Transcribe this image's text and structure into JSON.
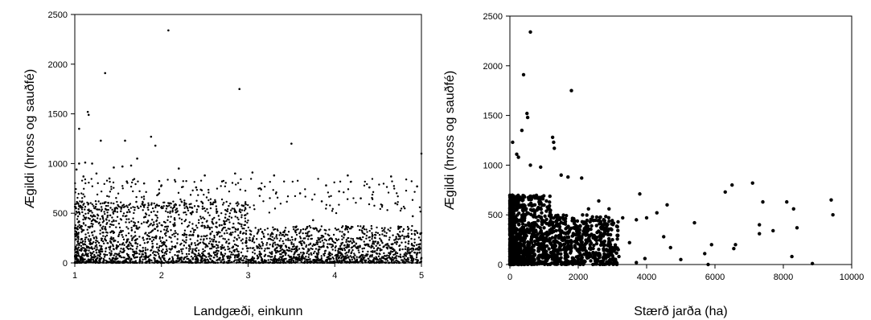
{
  "chart_data": [
    {
      "type": "scatter",
      "title": "",
      "xlabel": "Landgæði, einkunn",
      "ylabel": "Ægildi (hross og sauðfé)",
      "xlim": [
        1,
        5
      ],
      "ylim": [
        0,
        2500
      ],
      "xticks": [
        1,
        2,
        3,
        4,
        5
      ],
      "yticks": [
        0,
        500,
        1000,
        1500,
        2000,
        2500
      ],
      "grid": false,
      "marker": "small-dot",
      "color": "#000000",
      "points": [
        [
          2.08,
          2340
        ],
        [
          1.35,
          1910
        ],
        [
          2.9,
          1750
        ],
        [
          1.15,
          1520
        ],
        [
          1.16,
          1490
        ],
        [
          1.05,
          1350
        ],
        [
          1.88,
          1270
        ],
        [
          1.93,
          1180
        ],
        [
          3.5,
          1200
        ],
        [
          1.58,
          1230
        ],
        [
          1.3,
          1230
        ],
        [
          5.0,
          1100
        ],
        [
          1.05,
          1000
        ],
        [
          1.12,
          1010
        ],
        [
          1.2,
          1000
        ],
        [
          1.45,
          960
        ],
        [
          1.55,
          970
        ],
        [
          1.65,
          980
        ],
        [
          1.72,
          1050
        ],
        [
          2.2,
          950
        ],
        [
          2.5,
          880
        ],
        [
          2.85,
          900
        ],
        [
          3.05,
          910
        ],
        [
          3.3,
          880
        ],
        [
          4.15,
          880
        ],
        [
          4.65,
          870
        ],
        [
          3.9,
          780
        ],
        [
          4.4,
          760
        ],
        [
          4.95,
          770
        ],
        [
          1.02,
          940
        ],
        [
          1.1,
          870
        ],
        [
          1.25,
          900
        ],
        [
          1.4,
          850
        ],
        [
          1.6,
          820
        ],
        [
          1.8,
          800
        ],
        [
          2.0,
          780
        ],
        [
          2.4,
          760
        ],
        [
          2.7,
          820
        ],
        [
          3.15,
          740
        ],
        [
          3.6,
          700
        ],
        [
          4.05,
          720
        ],
        [
          4.3,
          650
        ],
        [
          4.7,
          600
        ],
        [
          4.9,
          470
        ],
        [
          4.85,
          260
        ],
        [
          5.0,
          50
        ],
        [
          4.5,
          150
        ],
        [
          4.2,
          200
        ],
        [
          3.75,
          430
        ],
        [
          3.85,
          620
        ]
      ],
      "note_points": "dense cloud of several thousand points between x=1 and x=5, y mostly 0–600"
    },
    {
      "type": "scatter",
      "title": "",
      "xlabel": "Stærð jarða (ha)",
      "ylabel": "Ægildi (hross og sauðfé)",
      "xlim": [
        0,
        10000
      ],
      "ylim": [
        0,
        2500
      ],
      "xticks": [
        0,
        2000,
        4000,
        6000,
        8000,
        10000
      ],
      "yticks": [
        0,
        500,
        1000,
        1500,
        2000,
        2500
      ],
      "grid": false,
      "marker": "dot",
      "color": "#000000",
      "points": [
        [
          600,
          2340
        ],
        [
          400,
          1910
        ],
        [
          1800,
          1750
        ],
        [
          500,
          1520
        ],
        [
          520,
          1480
        ],
        [
          350,
          1350
        ],
        [
          1250,
          1280
        ],
        [
          1280,
          1230
        ],
        [
          1300,
          1170
        ],
        [
          80,
          1230
        ],
        [
          200,
          1110
        ],
        [
          250,
          1080
        ],
        [
          900,
          980
        ],
        [
          1500,
          900
        ],
        [
          1700,
          880
        ],
        [
          2100,
          870
        ],
        [
          600,
          1000
        ],
        [
          2600,
          640
        ],
        [
          2900,
          560
        ],
        [
          3300,
          470
        ],
        [
          3700,
          450
        ],
        [
          3800,
          710
        ],
        [
          4000,
          470
        ],
        [
          4600,
          600
        ],
        [
          4300,
          520
        ],
        [
          4700,
          170
        ],
        [
          5000,
          50
        ],
        [
          5400,
          420
        ],
        [
          5700,
          110
        ],
        [
          5900,
          200
        ],
        [
          5800,
          0
        ],
        [
          6300,
          730
        ],
        [
          6500,
          800
        ],
        [
          6550,
          160
        ],
        [
          6600,
          200
        ],
        [
          7100,
          820
        ],
        [
          7300,
          400
        ],
        [
          7400,
          630
        ],
        [
          7300,
          310
        ],
        [
          7700,
          340
        ],
        [
          8100,
          630
        ],
        [
          8300,
          560
        ],
        [
          8400,
          370
        ],
        [
          8250,
          80
        ],
        [
          8850,
          10
        ],
        [
          9400,
          650
        ],
        [
          9450,
          500
        ],
        [
          3700,
          20
        ],
        [
          2300,
          560
        ],
        [
          3100,
          170
        ],
        [
          2500,
          260
        ],
        [
          1900,
          40
        ],
        [
          3950,
          60
        ],
        [
          4500,
          280
        ],
        [
          2700,
          400
        ],
        [
          3500,
          220
        ]
      ],
      "note_points": "dense cloud of points between x=0 and ~3000, y 0–700, heavily overplotted near x=0–1500"
    }
  ]
}
